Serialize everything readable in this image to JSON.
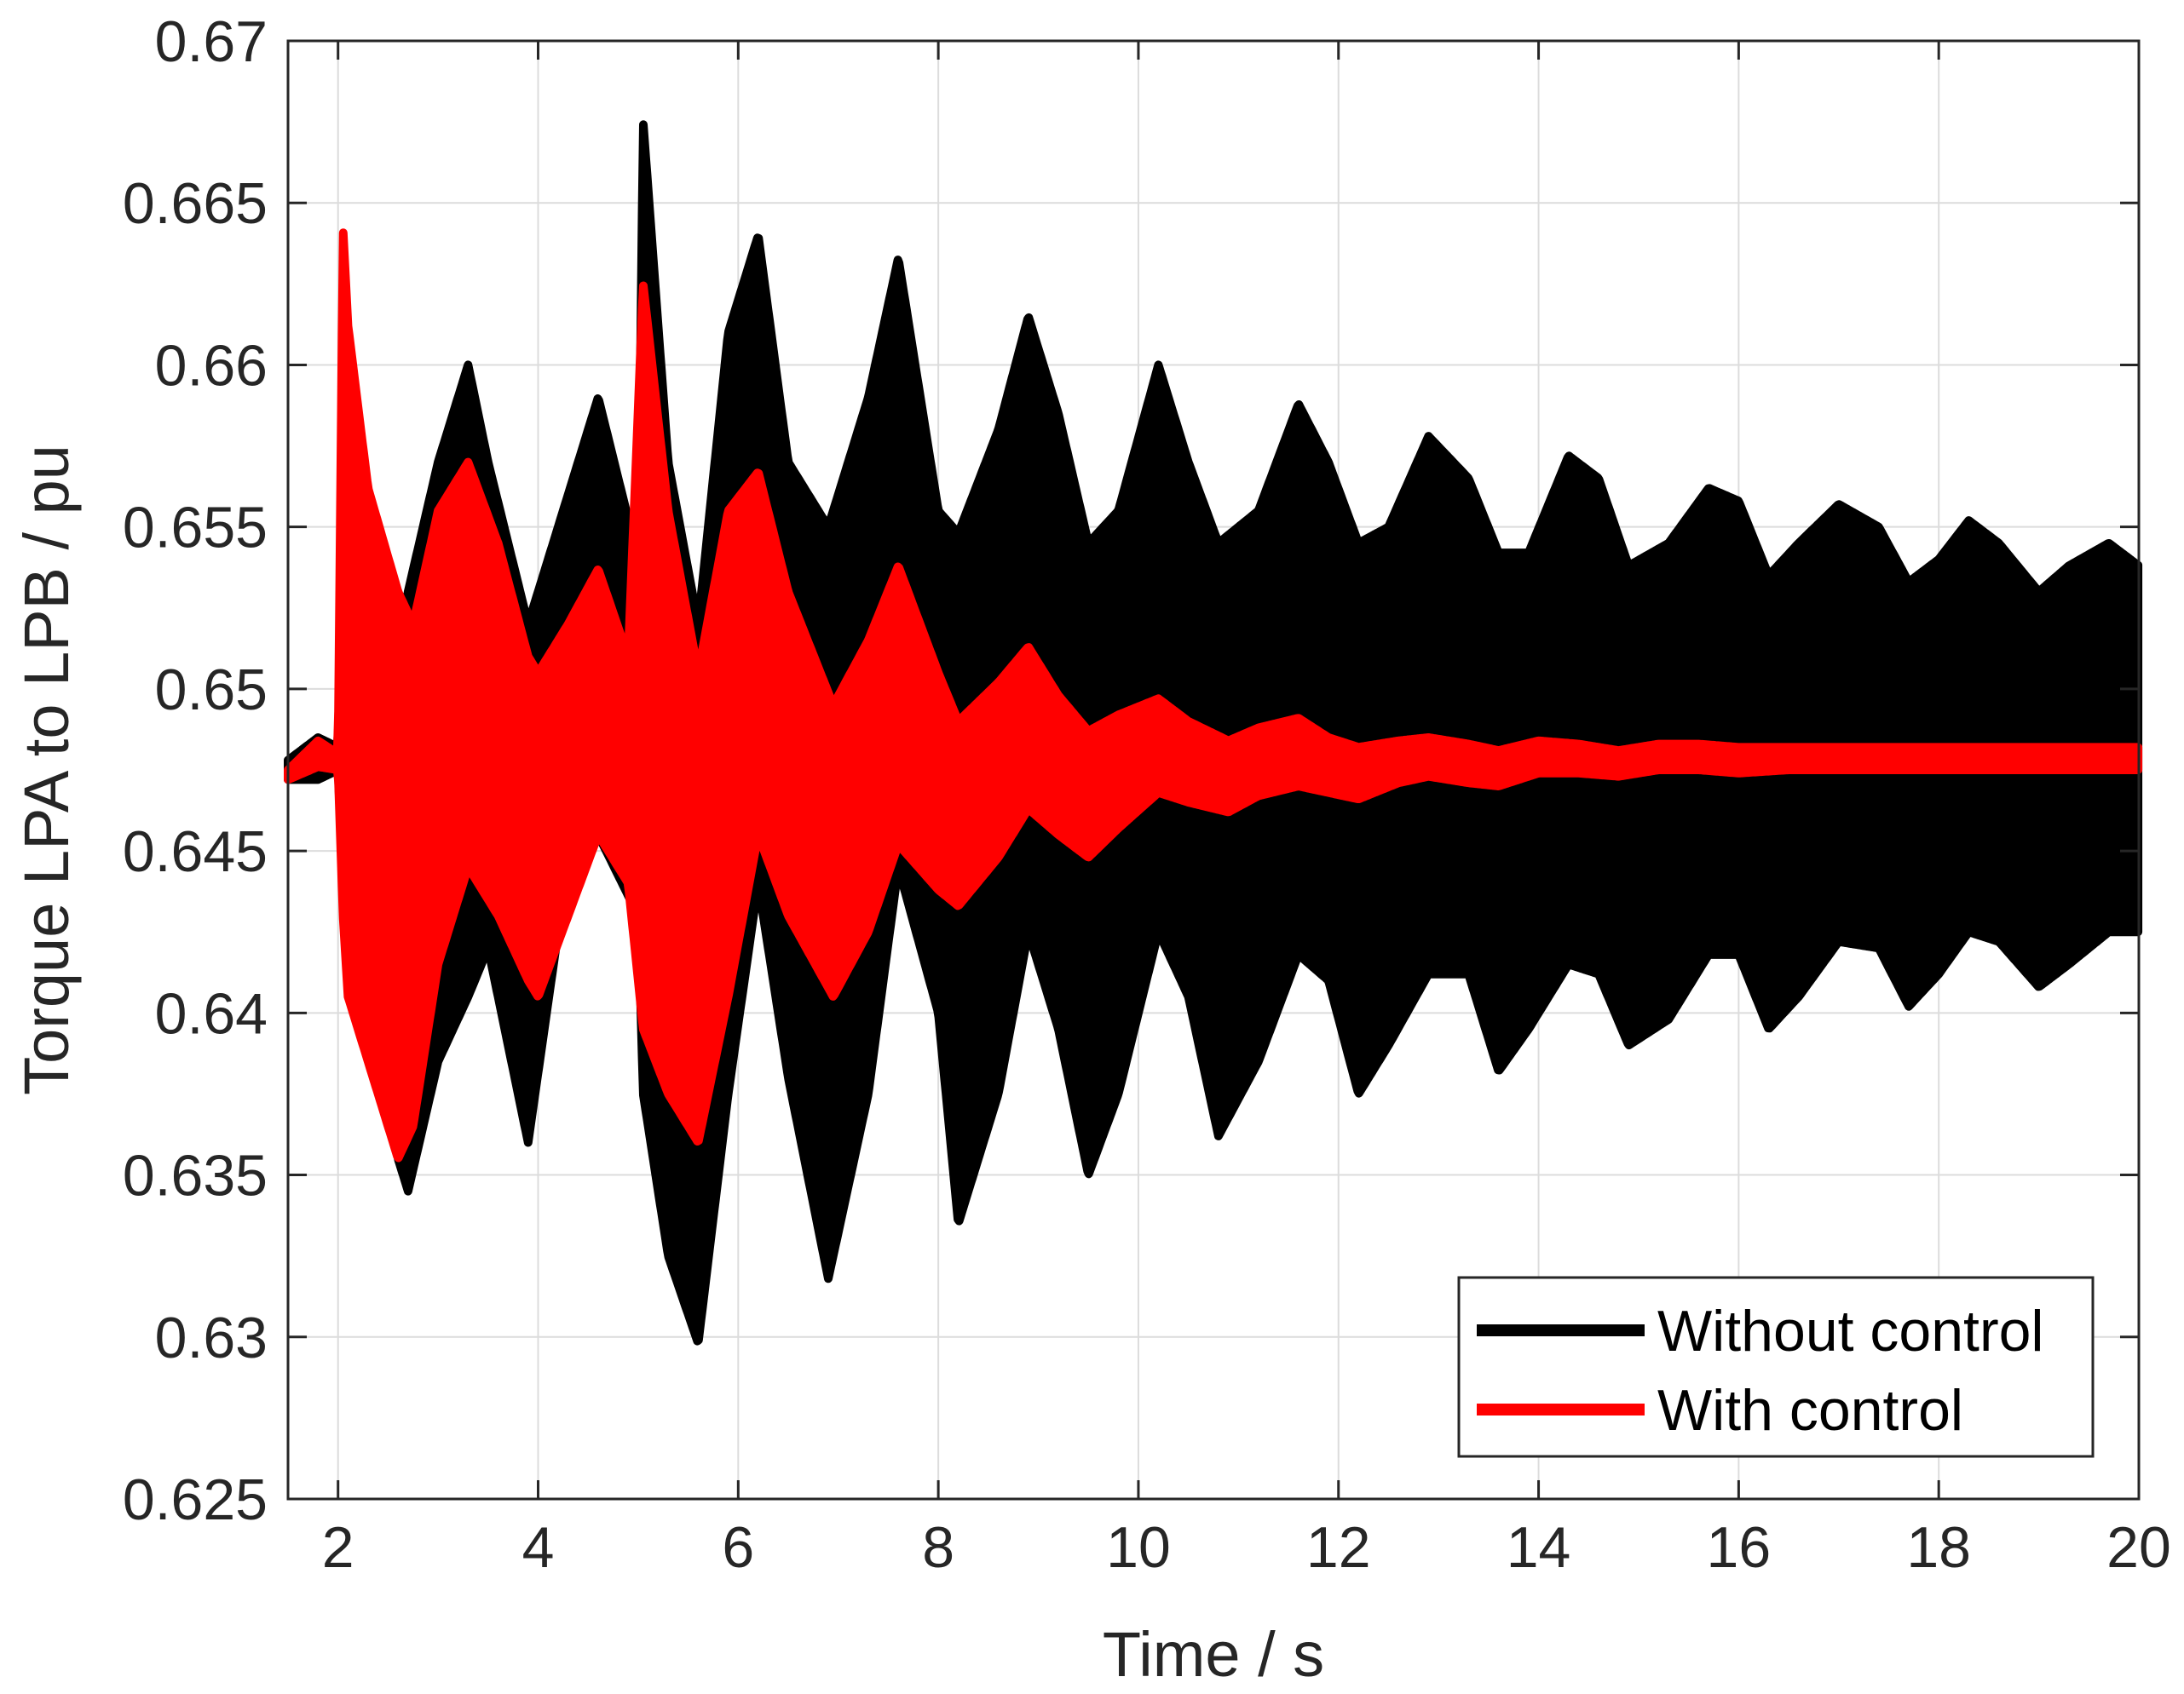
{
  "chart_data": {
    "type": "line",
    "xlabel": "Time / s",
    "ylabel": "Torque LPA to LPB / pu",
    "xlim": [
      1.5,
      20
    ],
    "ylim": [
      0.625,
      0.67
    ],
    "xticks": [
      2,
      4,
      6,
      8,
      10,
      12,
      14,
      16,
      18,
      20
    ],
    "yticks": [
      0.625,
      0.63,
      0.635,
      0.64,
      0.645,
      0.65,
      0.655,
      0.66,
      0.665,
      0.67
    ],
    "xtick_labels": [
      "2",
      "4",
      "6",
      "8",
      "10",
      "12",
      "14",
      "16",
      "18",
      "20"
    ],
    "ytick_labels": [
      "0.625",
      "0.63",
      "0.635",
      "0.64",
      "0.645",
      "0.65",
      "0.655",
      "0.66",
      "0.665",
      "0.67"
    ],
    "grid": true,
    "legend_position": "bottom-right",
    "series": [
      {
        "name": "Without control",
        "color": "#000000",
        "note_style": "fast oscillation band between upper and lower envelopes",
        "x": [
          1.5,
          1.8,
          2.0,
          2.05,
          2.3,
          2.6,
          2.7,
          3.0,
          3.3,
          3.5,
          3.9,
          4.2,
          4.6,
          5.0,
          5.05,
          5.3,
          5.6,
          5.9,
          6.2,
          6.5,
          6.9,
          7.3,
          7.6,
          8.0,
          8.2,
          8.6,
          8.9,
          9.2,
          9.5,
          9.8,
          10.2,
          10.5,
          10.8,
          11.2,
          11.6,
          11.9,
          12.2,
          12.5,
          12.9,
          13.3,
          13.6,
          13.9,
          14.3,
          14.6,
          14.9,
          15.3,
          15.7,
          16.0,
          16.3,
          16.6,
          17.0,
          17.4,
          17.7,
          18.0,
          18.3,
          18.6,
          19.0,
          19.3,
          19.7,
          20.0
        ],
        "upper": [
          0.6478,
          0.6485,
          0.6482,
          0.6565,
          0.655,
          0.651,
          0.653,
          0.657,
          0.66,
          0.657,
          0.652,
          0.655,
          0.659,
          0.654,
          0.6675,
          0.657,
          0.652,
          0.661,
          0.664,
          0.657,
          0.655,
          0.659,
          0.6633,
          0.6555,
          0.6548,
          0.658,
          0.6615,
          0.6585,
          0.6545,
          0.6555,
          0.66,
          0.657,
          0.6545,
          0.6555,
          0.6588,
          0.657,
          0.6545,
          0.655,
          0.6578,
          0.6565,
          0.6542,
          0.6542,
          0.6572,
          0.6565,
          0.6538,
          0.6545,
          0.6562,
          0.6558,
          0.6535,
          0.6545,
          0.6557,
          0.655,
          0.6533,
          0.654,
          0.6552,
          0.6545,
          0.653,
          0.6538,
          0.6545,
          0.6538
        ],
        "lower": [
          0.6472,
          0.6472,
          0.6475,
          0.644,
          0.641,
          0.6355,
          0.6345,
          0.6385,
          0.6405,
          0.642,
          0.636,
          0.6425,
          0.6455,
          0.643,
          0.6375,
          0.6325,
          0.6298,
          0.6375,
          0.644,
          0.638,
          0.6318,
          0.6375,
          0.6445,
          0.64,
          0.6335,
          0.6375,
          0.6425,
          0.6395,
          0.635,
          0.6375,
          0.6425,
          0.6405,
          0.6362,
          0.6385,
          0.6418,
          0.641,
          0.6375,
          0.639,
          0.6412,
          0.6412,
          0.6382,
          0.6395,
          0.6415,
          0.6412,
          0.639,
          0.6398,
          0.6418,
          0.6418,
          0.6395,
          0.6405,
          0.6422,
          0.642,
          0.6402,
          0.6412,
          0.6425,
          0.6422,
          0.6408,
          0.6415,
          0.6425,
          0.6425
        ]
      },
      {
        "name": "With control",
        "color": "#ff0000",
        "note_style": "fast oscillation band between upper and lower envelopes",
        "x": [
          1.5,
          1.8,
          2.0,
          2.05,
          2.1,
          2.3,
          2.6,
          2.75,
          3.0,
          3.3,
          3.6,
          3.9,
          4.0,
          4.3,
          4.6,
          4.9,
          5.05,
          5.3,
          5.6,
          5.9,
          6.2,
          6.5,
          6.95,
          7.3,
          7.6,
          8.0,
          8.2,
          8.6,
          8.9,
          9.2,
          9.5,
          9.8,
          10.2,
          10.5,
          10.9,
          11.2,
          11.6,
          11.9,
          12.2,
          12.6,
          12.9,
          13.3,
          13.6,
          14.0,
          14.4,
          14.8,
          15.2,
          15.6,
          16.0,
          16.5,
          17.0,
          17.5,
          18.0,
          18.5,
          19.0,
          19.5,
          20.0
        ],
        "upper": [
          0.6475,
          0.6484,
          0.648,
          0.6642,
          0.6612,
          0.6562,
          0.653,
          0.652,
          0.6555,
          0.657,
          0.6545,
          0.651,
          0.6505,
          0.652,
          0.6537,
          0.651,
          0.6625,
          0.6555,
          0.6505,
          0.6555,
          0.6567,
          0.653,
          0.6495,
          0.6515,
          0.6538,
          0.6505,
          0.649,
          0.6502,
          0.6513,
          0.6498,
          0.6487,
          0.6492,
          0.6497,
          0.649,
          0.6484,
          0.6488,
          0.6491,
          0.6485,
          0.6482,
          0.6484,
          0.6485,
          0.6483,
          0.6481,
          0.6484,
          0.6483,
          0.6481,
          0.6483,
          0.6483,
          0.6482,
          0.6482,
          0.6482,
          0.6482,
          0.6482,
          0.6482,
          0.6482,
          0.6482,
          0.6482
        ],
        "lower": [
          0.6472,
          0.6476,
          0.6475,
          0.643,
          0.6405,
          0.6385,
          0.6355,
          0.6365,
          0.6415,
          0.6445,
          0.643,
          0.641,
          0.6405,
          0.643,
          0.6455,
          0.644,
          0.6395,
          0.6375,
          0.636,
          0.6405,
          0.6455,
          0.643,
          0.6405,
          0.6425,
          0.6452,
          0.6438,
          0.6433,
          0.6448,
          0.6463,
          0.6455,
          0.6448,
          0.6457,
          0.6468,
          0.6465,
          0.6462,
          0.6467,
          0.647,
          0.6468,
          0.6466,
          0.6471,
          0.6473,
          0.6471,
          0.647,
          0.6474,
          0.6474,
          0.6473,
          0.6475,
          0.6475,
          0.6474,
          0.6475,
          0.6475,
          0.6475,
          0.6475,
          0.6475,
          0.6475,
          0.6475,
          0.6475
        ]
      }
    ]
  }
}
